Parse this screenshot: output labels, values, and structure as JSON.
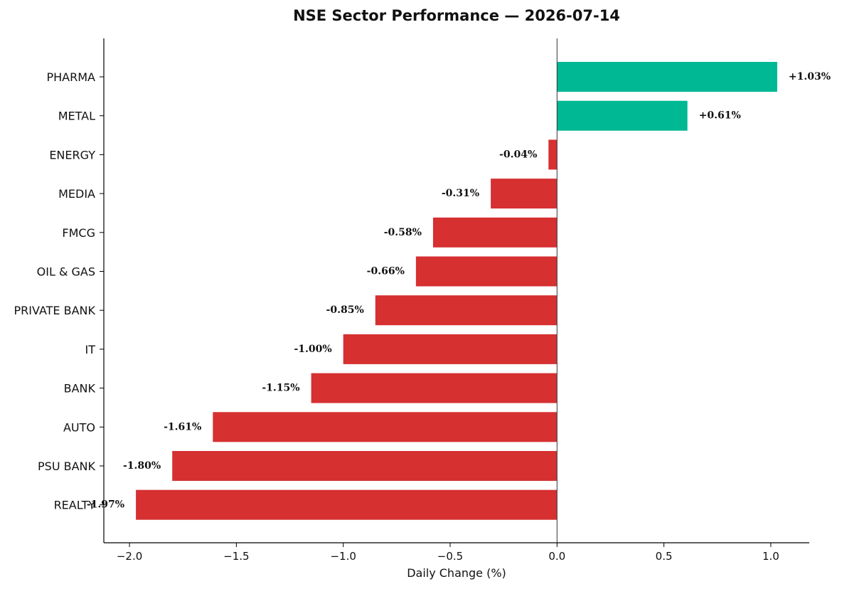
{
  "chart_data": {
    "type": "bar",
    "orientation": "horizontal",
    "title": "NSE Sector Performance — 2026-07-14",
    "xlabel": "Daily Change (%)",
    "ylabel": "",
    "xlim": [
      -2.12,
      1.18
    ],
    "xticks": [
      -2.0,
      -1.5,
      -1.0,
      -0.5,
      0.0,
      0.5,
      1.0
    ],
    "xtick_labels": [
      "−2.0",
      "−1.5",
      "−1.0",
      "−0.5",
      "0.0",
      "0.5",
      "1.0"
    ],
    "grid": false,
    "legend": "none",
    "colors": {
      "positive": "#00b894",
      "negative": "#d63031"
    },
    "categories": [
      "PHARMA",
      "METAL",
      "ENERGY",
      "MEDIA",
      "FMCG",
      "OIL & GAS",
      "PRIVATE BANK",
      "IT",
      "BANK",
      "AUTO",
      "PSU BANK",
      "REALTY"
    ],
    "values": [
      1.03,
      0.61,
      -0.04,
      -0.31,
      -0.58,
      -0.66,
      -0.85,
      -1.0,
      -1.15,
      -1.61,
      -1.8,
      -1.97
    ],
    "data_labels": [
      "+1.03%",
      "+0.61%",
      "-0.04%",
      "-0.31%",
      "-0.58%",
      "-0.66%",
      "-0.85%",
      "-1.00%",
      "-1.15%",
      "-1.61%",
      "-1.80%",
      "-1.97%"
    ]
  }
}
